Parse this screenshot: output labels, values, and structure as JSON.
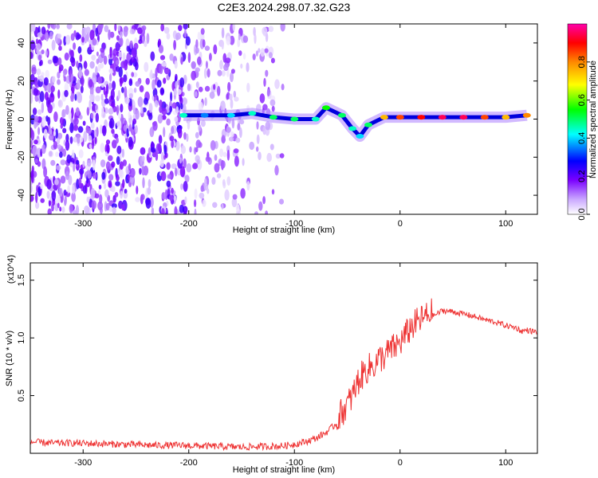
{
  "title": "C2E3.2024.298.07.32.G23",
  "chart_data": [
    {
      "type": "heatmap",
      "xlabel": "Height of straight line (km)",
      "ylabel": "Frequency (Hz)",
      "xlim": [
        -350,
        130
      ],
      "ylim": [
        -50,
        50
      ],
      "xticks": [
        -300,
        -200,
        -100,
        0,
        100
      ],
      "yticks": [
        -40,
        -20,
        0,
        20,
        40
      ],
      "colorbar": {
        "label": "Normalized spectral amplitude",
        "range": [
          0,
          1
        ],
        "ticks": [
          "0.0",
          "0.2",
          "0.4",
          "0.6",
          "0.8"
        ],
        "colors": [
          "#ffffff",
          "#7a00ff",
          "#0000ff",
          "#00ffff",
          "#00ff00",
          "#ffff00",
          "#ff8800",
          "#ff0000",
          "#ff00aa"
        ]
      },
      "signal_track": [
        {
          "x": -205,
          "f": 2,
          "amp": 0.45
        },
        {
          "x": -185,
          "f": 2,
          "amp": 0.35
        },
        {
          "x": -160,
          "f": 2,
          "amp": 0.4
        },
        {
          "x": -140,
          "f": 3,
          "amp": 0.45
        },
        {
          "x": -120,
          "f": 1,
          "amp": 0.5
        },
        {
          "x": -100,
          "f": 0,
          "amp": 0.5
        },
        {
          "x": -80,
          "f": 0,
          "amp": 0.45
        },
        {
          "x": -70,
          "f": 6,
          "amp": 0.55
        },
        {
          "x": -55,
          "f": 2,
          "amp": 0.5
        },
        {
          "x": -45,
          "f": -5,
          "amp": 0.45
        },
        {
          "x": -38,
          "f": -9,
          "amp": 0.4
        },
        {
          "x": -30,
          "f": -3,
          "amp": 0.5
        },
        {
          "x": -15,
          "f": 1,
          "amp": 0.75
        },
        {
          "x": 0,
          "f": 1,
          "amp": 0.85
        },
        {
          "x": 20,
          "f": 1,
          "amp": 0.9
        },
        {
          "x": 40,
          "f": 1,
          "amp": 0.95
        },
        {
          "x": 60,
          "f": 1,
          "amp": 0.95
        },
        {
          "x": 80,
          "f": 1,
          "amp": 0.85
        },
        {
          "x": 100,
          "f": 1,
          "amp": 0.75
        },
        {
          "x": 120,
          "f": 2,
          "amp": 0.8
        }
      ]
    },
    {
      "type": "line",
      "xlabel": "Height of straight line (km)",
      "ylabel": "SNR (10 * v/v)",
      "y_multiplier": "(x10^4)",
      "xlim": [
        -350,
        130
      ],
      "ylim": [
        0,
        16500
      ],
      "xticks": [
        -300,
        -200,
        -100,
        0,
        100
      ],
      "yticks": [
        5000,
        10000,
        15000
      ],
      "ytick_labels": [
        "0.5",
        "1.0",
        "1.5"
      ],
      "color": "#ee3333",
      "series": [
        {
          "x": [
            -350,
            -330,
            -310,
            -290,
            -270,
            -250,
            -230,
            -210,
            -190,
            -170,
            -150,
            -130,
            -110,
            -100,
            -90,
            -80,
            -70,
            -60,
            -55,
            -50,
            -45,
            -40,
            -35,
            -30,
            -25,
            -20,
            -15,
            -10,
            -5,
            0,
            5,
            10,
            15,
            20,
            25,
            30,
            35,
            40,
            50,
            60,
            70,
            80,
            90,
            100,
            110,
            115,
            120,
            130
          ],
          "y": [
            900,
            800,
            800,
            750,
            700,
            650,
            600,
            600,
            550,
            500,
            450,
            500,
            550,
            700,
            900,
            1200,
            1700,
            2500,
            3200,
            3800,
            4600,
            5800,
            6500,
            7000,
            7200,
            7800,
            8000,
            8500,
            8800,
            9200,
            9800,
            10500,
            10900,
            11200,
            11500,
            11800,
            12000,
            12300,
            12200,
            12000,
            11800,
            11500,
            11300,
            11000,
            10800,
            10500,
            10600,
            10400
          ]
        }
      ]
    }
  ]
}
